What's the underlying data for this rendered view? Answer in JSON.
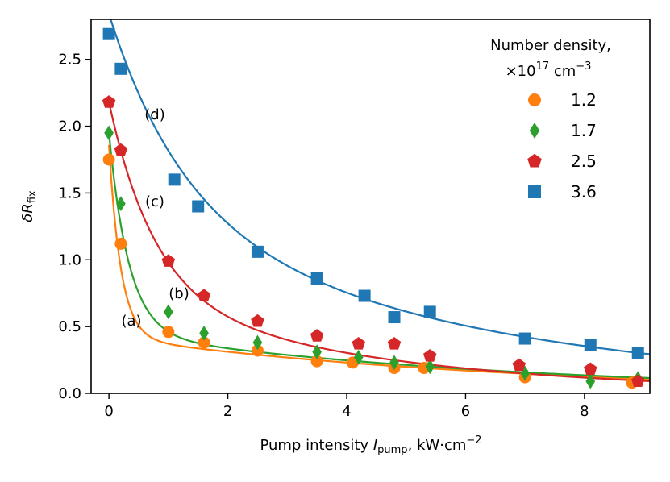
{
  "chart_data": {
    "type": "scatter",
    "xlabel_prefix": "Pump intensity ",
    "xlabel_var": "I",
    "xlabel_sub": "pump",
    "xlabel_suffix": ", kW·cm",
    "xlabel_sup": "−2",
    "ylabel_var": "δR",
    "ylabel_sub": "fix",
    "xlim": [
      -0.3,
      9.1
    ],
    "ylim": [
      0.0,
      2.8
    ],
    "xticks": [
      0,
      2,
      4,
      6,
      8
    ],
    "xtick_labels": [
      "0",
      "2",
      "4",
      "6",
      "8"
    ],
    "yticks": [
      0.0,
      0.5,
      1.0,
      1.5,
      2.0,
      2.5
    ],
    "ytick_labels": [
      "0.0",
      "0.5",
      "1.0",
      "1.5",
      "2.0",
      "2.5"
    ],
    "legend": {
      "title_line1": "Number density,",
      "title_line2_prefix": "×10",
      "title_line2_sup": "17",
      "title_line2_unit": " cm",
      "title_line2_unit_sup": "−3",
      "position": "top-right"
    },
    "series": [
      {
        "key": "a",
        "name": "1.2",
        "curve_label": "(a)",
        "color": "#ff7f0e",
        "marker": "circle",
        "x": [
          0.0,
          0.2,
          1.0,
          1.6,
          2.5,
          3.5,
          4.1,
          4.8,
          5.3,
          7.0,
          8.8
        ],
        "y": [
          1.75,
          1.12,
          0.46,
          0.38,
          0.32,
          0.24,
          0.23,
          0.19,
          0.19,
          0.12,
          0.08
        ],
        "fit": {
          "A": 1.44,
          "k": 5.0,
          "B": 0.42,
          "m": 0.15
        }
      },
      {
        "key": "b",
        "name": "1.7",
        "curve_label": "(b)",
        "color": "#2ca02c",
        "marker": "diamond",
        "x": [
          0.0,
          0.2,
          1.0,
          1.6,
          2.5,
          3.5,
          4.2,
          4.8,
          5.4,
          7.0,
          8.1,
          8.9
        ],
        "y": [
          1.95,
          1.42,
          0.61,
          0.45,
          0.38,
          0.31,
          0.27,
          0.23,
          0.2,
          0.15,
          0.09,
          0.11
        ],
        "fit": {
          "A": 1.5,
          "k": 3.0,
          "B": 0.45,
          "m": 0.15
        }
      },
      {
        "key": "c",
        "name": "2.5",
        "curve_label": "(c)",
        "color": "#d62728",
        "marker": "pentagon",
        "x": [
          0.0,
          0.2,
          1.0,
          1.6,
          2.5,
          3.5,
          4.2,
          4.8,
          5.4,
          6.9,
          8.1,
          8.9
        ],
        "y": [
          2.18,
          1.82,
          0.99,
          0.73,
          0.54,
          0.43,
          0.37,
          0.37,
          0.28,
          0.21,
          0.18,
          0.09
        ],
        "fit": {
          "A": 1.44,
          "k": 1.3,
          "B": 0.74,
          "m": 0.23
        }
      },
      {
        "key": "d",
        "name": "3.6",
        "curve_label": "(d)",
        "color": "#1f77b4",
        "marker": "square",
        "x": [
          0.0,
          0.2,
          1.1,
          1.5,
          2.5,
          3.5,
          4.3,
          4.8,
          5.4,
          7.0,
          8.1,
          8.9
        ],
        "y": [
          2.69,
          2.43,
          1.6,
          1.4,
          1.06,
          0.86,
          0.73,
          0.57,
          0.61,
          0.41,
          0.36,
          0.3
        ],
        "fit": {
          "A": 1.47,
          "k": 0.8,
          "B": 1.37,
          "m": 0.17
        }
      }
    ]
  }
}
